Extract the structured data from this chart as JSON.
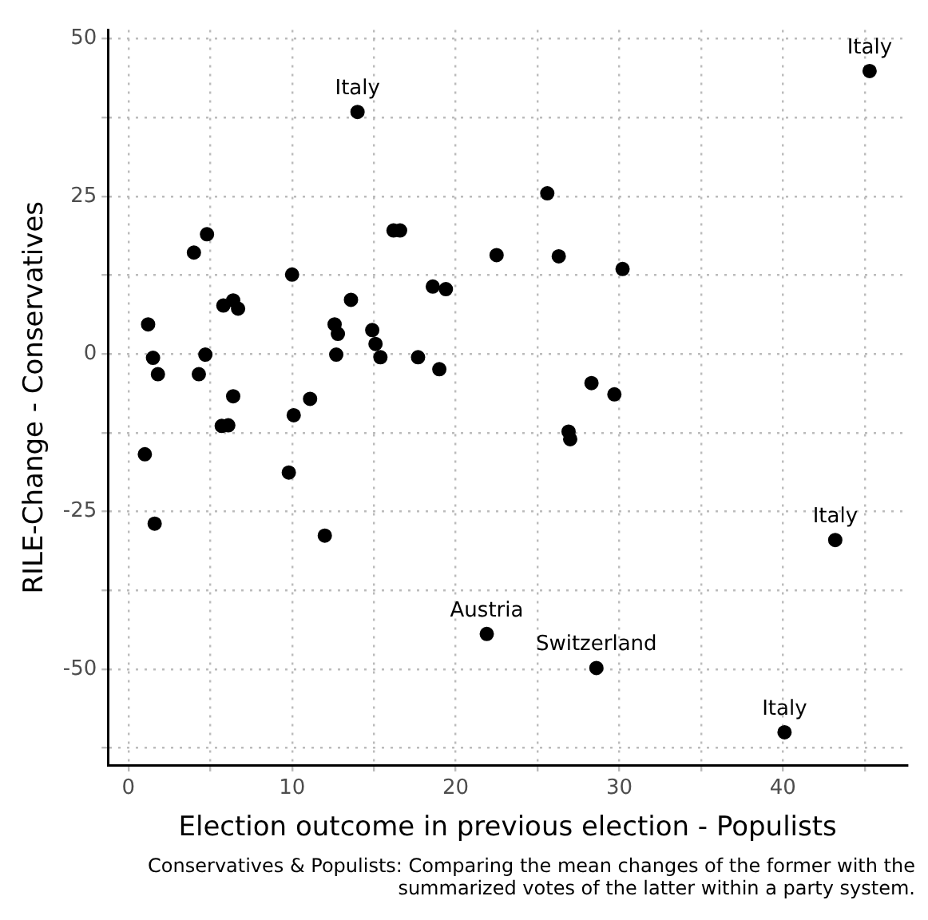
{
  "chart_data": {
    "type": "scatter",
    "xlabel": "Election outcome in previous election - Populists",
    "ylabel": "RILE-Change - Conservatives",
    "x": [
      14.0,
      4.8,
      4.0,
      16.2,
      16.6,
      22.5,
      10.0,
      18.6,
      19.4,
      13.6,
      5.8,
      6.4,
      6.7,
      1.2,
      12.6,
      12.8,
      14.9,
      15.1,
      1.5,
      4.7,
      12.7,
      15.4,
      17.7,
      19.0,
      1.8,
      4.3,
      6.4,
      11.1,
      45.3,
      25.6,
      26.3,
      30.2,
      28.3,
      29.7,
      10.1,
      5.7,
      6.1,
      1.0,
      9.8,
      1.6,
      12.0,
      21.9,
      26.9,
      27.0,
      43.2,
      28.6,
      40.1
    ],
    "values": [
      38.4,
      19.0,
      16.1,
      19.6,
      19.6,
      15.7,
      12.6,
      10.7,
      10.3,
      8.6,
      7.7,
      8.5,
      7.2,
      4.7,
      4.7,
      3.2,
      3.8,
      1.6,
      -0.6,
      -0.1,
      -0.1,
      -0.5,
      -0.5,
      -2.4,
      -3.2,
      -3.2,
      -6.7,
      -7.1,
      44.9,
      25.5,
      15.5,
      13.5,
      -4.6,
      -6.4,
      -9.7,
      -11.4,
      -11.3,
      -15.9,
      -18.8,
      -26.9,
      -28.8,
      -44.4,
      -12.3,
      -13.5,
      -29.5,
      -49.8,
      -60.0
    ],
    "color": "#000000",
    "marker": "circle",
    "xlim": [
      -1.25,
      47.6
    ],
    "ylim": [
      -65.2,
      51.4
    ],
    "xticks": [
      0,
      {
        "value": 5,
        "label": null
      },
      10,
      {
        "value": 15,
        "label": null
      },
      20,
      {
        "value": 25,
        "label": null
      },
      30,
      {
        "value": 35,
        "label": null
      },
      40,
      {
        "value": 45,
        "label": null
      }
    ],
    "yticks": [
      {
        "value": -62.5,
        "label": null
      },
      -50,
      {
        "value": -37.5,
        "label": null
      },
      -25,
      {
        "value": -12.5,
        "label": null
      },
      0,
      {
        "value": 12.5,
        "label": null
      },
      25,
      {
        "value": 37.5,
        "label": null
      },
      50
    ],
    "grid": true,
    "legend": false,
    "annotations": [
      {
        "text": "Italy",
        "x": 14.0,
        "y": 38.4
      },
      {
        "text": "Italy",
        "x": 45.3,
        "y": 44.9
      },
      {
        "text": "Italy",
        "x": 43.2,
        "y": -29.5
      },
      {
        "text": "Austria",
        "x": 21.9,
        "y": -44.4
      },
      {
        "text": "Switzerland",
        "x": 28.6,
        "y": -49.8
      },
      {
        "text": "Italy",
        "x": 40.1,
        "y": -60.0
      },
      "Conservatives & Populists: Comparing the mean changes of the former with the summarized votes of the latter within a party system."
    ]
  }
}
